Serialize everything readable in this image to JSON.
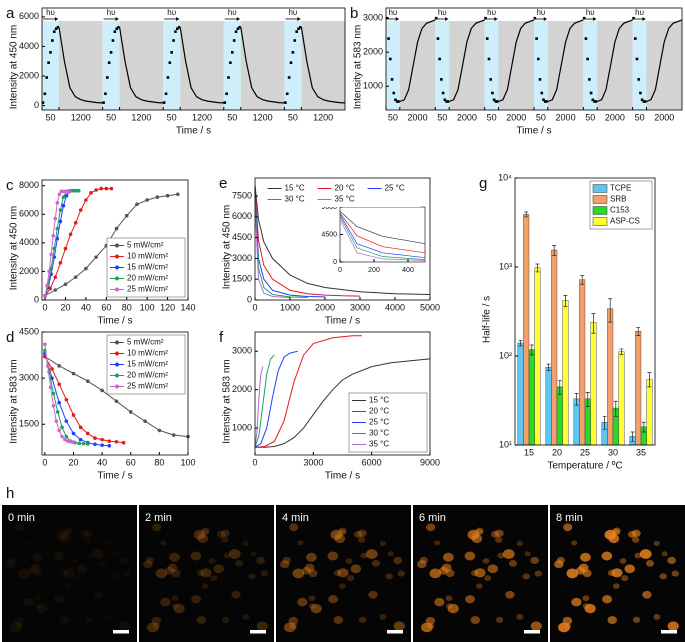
{
  "chart_data": [
    {
      "type": "cycle",
      "panel_label": "a",
      "ylabel": "Intensity at 450 nm",
      "xlabel": "Time / s",
      "annotation": "hυ",
      "categories": [
        "50",
        "1200",
        "50",
        "1200",
        "50",
        "1200",
        "50",
        "1200",
        "50",
        "1200"
      ],
      "on_values": [
        200,
        800,
        1900,
        2900,
        3600,
        4400,
        5000,
        5200,
        5300
      ],
      "off_values": [
        5300,
        3000,
        1200,
        600,
        400,
        300,
        250,
        200,
        180
      ],
      "ylim": [
        -300,
        6600
      ],
      "yticks": [
        0,
        2000,
        4000,
        6000
      ],
      "on_color": "#cdeefa",
      "off_color": "#d3d3d3"
    },
    {
      "type": "cycle",
      "panel_label": "b",
      "ylabel": "Intensity at 583 nm",
      "xlabel": "Time / s",
      "annotation": "hυ",
      "categories": [
        "50",
        "2000",
        "50",
        "2000",
        "50",
        "2000",
        "50",
        "2000",
        "50",
        "2000",
        "50",
        "2000"
      ],
      "on_values": [
        3000,
        2400,
        1800,
        1200,
        800,
        600,
        550,
        550
      ],
      "off_values": [
        550,
        600,
        900,
        1600,
        2300,
        2700,
        2850,
        2900,
        2950
      ],
      "ylim": [
        300,
        3300
      ],
      "yticks": [
        1000,
        2000,
        3000
      ],
      "on_color": "#cdeefa",
      "off_color": "#d3d3d3"
    },
    {
      "type": "line",
      "panel_label": "c",
      "ylabel": "Intensity at 450 nm",
      "xlabel": "Time / s",
      "markers": true,
      "legend": "lower right",
      "xlim": [
        -3,
        140
      ],
      "xticks": [
        0,
        20,
        40,
        60,
        80,
        100,
        120,
        140
      ],
      "ylim": [
        0,
        8400
      ],
      "yticks": [
        0,
        2000,
        4000,
        6000,
        8000
      ],
      "series": [
        {
          "name": "5 mW/cm²",
          "color": "#555555",
          "x": [
            0,
            10,
            20,
            30,
            40,
            50,
            60,
            70,
            80,
            90,
            100,
            110,
            120,
            130
          ],
          "values": [
            300,
            700,
            1100,
            1600,
            2200,
            3000,
            3800,
            5000,
            5900,
            6700,
            7000,
            7200,
            7300,
            7400
          ]
        },
        {
          "name": "10 mW/cm²",
          "color": "#e41a1c",
          "x": [
            0,
            5,
            10,
            15,
            20,
            25,
            30,
            35,
            40,
            45,
            50,
            55,
            60,
            65
          ],
          "values": [
            300,
            800,
            1600,
            2600,
            3600,
            4600,
            5400,
            6300,
            7000,
            7500,
            7700,
            7800,
            7800,
            7800
          ]
        },
        {
          "name": "15 mW/cm²",
          "color": "#1f3fff",
          "x": [
            0,
            3,
            6,
            9,
            12,
            15,
            18,
            21,
            24,
            27,
            30
          ],
          "values": [
            300,
            900,
            1800,
            3000,
            4300,
            5500,
            6600,
            7300,
            7600,
            7650,
            7650
          ]
        },
        {
          "name": "20 mW/cm²",
          "color": "#19a35a",
          "x": [
            0,
            3,
            6,
            9,
            12,
            15,
            18,
            21,
            24,
            27,
            30,
            33
          ],
          "values": [
            300,
            1100,
            2200,
            3600,
            5000,
            6300,
            7200,
            7600,
            7650,
            7650,
            7650,
            7650
          ]
        },
        {
          "name": "25 mW/cm²",
          "color": "#cc66cc",
          "x": [
            0,
            2,
            4,
            6,
            8,
            10,
            12,
            14,
            16,
            18,
            20,
            22,
            24
          ],
          "values": [
            300,
            1000,
            2000,
            3200,
            4500,
            5700,
            6800,
            7400,
            7600,
            7600,
            7600,
            7600,
            7600
          ]
        }
      ]
    },
    {
      "type": "line",
      "panel_label": "d",
      "ylabel": "Intensity at 583 nm",
      "xlabel": "Time / s",
      "markers": true,
      "legend": "upper right",
      "xlim": [
        -2,
        100
      ],
      "xticks": [
        0,
        20,
        40,
        60,
        80,
        100
      ],
      "ylim": [
        500,
        4500
      ],
      "yticks": [
        1500,
        3000,
        4500
      ],
      "series": [
        {
          "name": "5 mW/cm²",
          "color": "#555555",
          "x": [
            0,
            10,
            20,
            30,
            40,
            50,
            60,
            70,
            80,
            90,
            100
          ],
          "values": [
            3700,
            3400,
            3150,
            2900,
            2600,
            2250,
            1900,
            1600,
            1300,
            1150,
            1100
          ]
        },
        {
          "name": "10 mW/cm²",
          "color": "#e41a1c",
          "x": [
            0,
            5,
            10,
            15,
            20,
            25,
            30,
            35,
            40,
            45,
            50,
            55
          ],
          "values": [
            3700,
            3300,
            2800,
            2300,
            1800,
            1400,
            1200,
            1050,
            1000,
            950,
            930,
            900
          ]
        },
        {
          "name": "15 mW/cm²",
          "color": "#1f3fff",
          "x": [
            0,
            5,
            10,
            15,
            20,
            25,
            30,
            35,
            40,
            45
          ],
          "values": [
            3800,
            3000,
            2200,
            1600,
            1200,
            1000,
            900,
            850,
            820,
            800
          ]
        },
        {
          "name": "20 mW/cm²",
          "color": "#19a35a",
          "x": [
            0,
            3,
            6,
            9,
            12,
            15,
            18,
            21,
            24,
            27,
            30
          ],
          "values": [
            3900,
            3200,
            2500,
            1900,
            1400,
            1100,
            950,
            900,
            880,
            870,
            860
          ]
        },
        {
          "name": "25 mW/cm²",
          "color": "#cc66cc",
          "x": [
            0,
            2,
            4,
            6,
            8,
            10,
            12,
            14,
            16,
            18,
            20
          ],
          "values": [
            4100,
            3400,
            2700,
            2100,
            1600,
            1300,
            1100,
            1000,
            950,
            930,
            920
          ]
        }
      ]
    },
    {
      "type": "line",
      "panel_label": "e",
      "ylabel": "Intensity at 450 nm",
      "xlabel": "Time / s",
      "markers": false,
      "legend": "upper center",
      "xlim": [
        0,
        5000
      ],
      "xticks": [
        0,
        1000,
        2000,
        3000,
        4000,
        5000
      ],
      "ylim": [
        0,
        8800
      ],
      "yticks": [
        0,
        1500,
        3000,
        4500,
        6000,
        7500
      ],
      "inset": {
        "xlim": [
          0,
          500
        ],
        "ylim": [
          0,
          9000
        ],
        "xticks": [
          0,
          200,
          400
        ],
        "yticks": [
          0,
          4500,
          9000
        ]
      },
      "series": [
        {
          "name": "15 °C",
          "color": "#333333",
          "x": [
            0,
            100,
            250,
            500,
            1000,
            1500,
            2000,
            3000,
            4000,
            5000
          ],
          "values": [
            8300,
            5800,
            4200,
            3000,
            1800,
            1200,
            900,
            600,
            450,
            400
          ]
        },
        {
          "name": "20 °C",
          "color": "#e41a1c",
          "x": [
            0,
            100,
            250,
            500,
            1000,
            1500,
            2000,
            2500,
            3000
          ],
          "values": [
            8000,
            4300,
            2500,
            1500,
            700,
            450,
            350,
            300,
            280
          ]
        },
        {
          "name": "25 °C",
          "color": "#1f3fff",
          "x": [
            0,
            100,
            250,
            500,
            1000,
            1500,
            2000
          ],
          "values": [
            7800,
            3000,
            1500,
            700,
            350,
            250,
            220
          ]
        },
        {
          "name": "30 °C",
          "color": "#19a35a",
          "x": [
            0,
            100,
            250,
            500,
            1000,
            1500
          ],
          "values": [
            7500,
            2300,
            900,
            400,
            220,
            180
          ]
        },
        {
          "name": "35 °C",
          "color": "#b266d6",
          "x": [
            0,
            100,
            250,
            500,
            1000
          ],
          "values": [
            7000,
            1500,
            500,
            250,
            170
          ]
        }
      ]
    },
    {
      "type": "line",
      "panel_label": "f",
      "ylabel": "Intensity at 583 nm",
      "xlabel": "Time / s",
      "markers": false,
      "legend": "lower right",
      "xlim": [
        0,
        9000
      ],
      "xticks": [
        0,
        3000,
        6000,
        9000
      ],
      "ylim": [
        300,
        3500
      ],
      "yticks": [
        1000,
        2000,
        3000
      ],
      "series": [
        {
          "name": "15 °C",
          "color": "#333333",
          "x": [
            0,
            500,
            1000,
            1500,
            2000,
            2500,
            3000,
            3500,
            4000,
            4500,
            5000,
            6000,
            7000,
            8000,
            9000
          ],
          "values": [
            500,
            500,
            520,
            600,
            750,
            1000,
            1350,
            1700,
            2000,
            2250,
            2400,
            2600,
            2700,
            2750,
            2800
          ]
        },
        {
          "name": "20 °C",
          "color": "#e41a1c",
          "x": [
            0,
            500,
            1000,
            1500,
            2000,
            2500,
            3000,
            4000,
            5000,
            5500
          ],
          "values": [
            500,
            520,
            650,
            1200,
            2200,
            2900,
            3200,
            3350,
            3400,
            3400
          ]
        },
        {
          "name": "25 °C",
          "color": "#1f3fff",
          "x": [
            0,
            300,
            600,
            900,
            1200,
            1500,
            1800,
            2200
          ],
          "values": [
            500,
            600,
            1000,
            1800,
            2500,
            2850,
            2950,
            3000
          ]
        },
        {
          "name": "30 °C",
          "color": "#19a35a",
          "x": [
            0,
            200,
            400,
            600,
            800,
            1000
          ],
          "values": [
            500,
            800,
            1600,
            2400,
            2800,
            2900
          ]
        },
        {
          "name": "35 °C",
          "color": "#b266d6",
          "x": [
            0,
            100,
            200,
            300,
            400
          ],
          "values": [
            500,
            900,
            1800,
            2400,
            2600
          ]
        }
      ]
    },
    {
      "type": "bar",
      "panel_label": "g",
      "ylabel": "Half-life / s",
      "xlabel": "Temperature / ºC",
      "legend": "upper right",
      "ylog": true,
      "categories": [
        "15",
        "20",
        "25",
        "30",
        "35"
      ],
      "ylim": [
        10,
        10000
      ],
      "yticks": [
        {
          "value": 10,
          "label": "10¹"
        },
        {
          "value": 100,
          "label": "10²"
        },
        {
          "value": 1000,
          "label": "10³"
        },
        {
          "value": 10000,
          "label": "10⁴"
        }
      ],
      "series": [
        {
          "name": "TCPE",
          "color": "#5bc6f0",
          "values": [
            140,
            75,
            33,
            18,
            12.5
          ],
          "errors": [
            10,
            6,
            5,
            3,
            1.5
          ]
        },
        {
          "name": "SRB",
          "color": "#f4a06c",
          "values": [
            3900,
            1550,
            720,
            340,
            190
          ],
          "errors": [
            250,
            200,
            80,
            100,
            20
          ]
        },
        {
          "name": "C153",
          "color": "#22dd22",
          "values": [
            118,
            45,
            33,
            26,
            16
          ],
          "errors": [
            15,
            8,
            6,
            5,
            2
          ]
        },
        {
          "name": "ASP-CS",
          "color": "#ffff33",
          "values": [
            980,
            420,
            240,
            112,
            55
          ],
          "errors": [
            100,
            60,
            60,
            8,
            10
          ]
        }
      ]
    }
  ],
  "panel_h": {
    "label": "h",
    "frames": [
      "0 min",
      "2 min",
      "4 min",
      "6 min",
      "8 min"
    ]
  }
}
